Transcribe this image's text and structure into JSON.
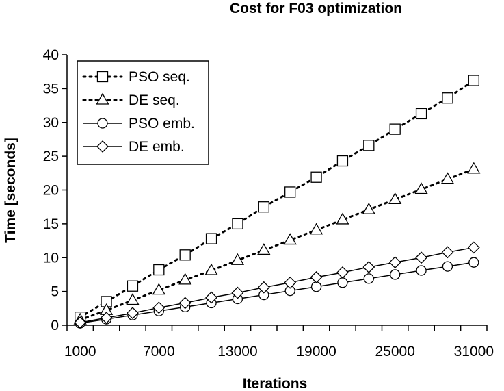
{
  "chart_data": {
    "type": "line",
    "title": "Cost for F03 optimization",
    "xlabel": "Iterations",
    "ylabel": "Time [seconds]",
    "xlim": [
      0,
      32000
    ],
    "ylim": [
      0,
      40
    ],
    "x_ticks": [
      1000,
      7000,
      13000,
      19000,
      25000,
      31000
    ],
    "x_tick_labels": [
      "1000",
      "7000",
      "13000",
      "19000",
      "25000",
      "31000"
    ],
    "y_ticks": [
      0,
      5,
      10,
      15,
      20,
      25,
      30,
      35,
      40
    ],
    "y_tick_labels": [
      "0",
      "5",
      "10",
      "15",
      "20",
      "25",
      "30",
      "35",
      "40"
    ],
    "grid": false,
    "legend_position": "top-left",
    "x": [
      1000,
      3000,
      5000,
      7000,
      9000,
      11000,
      13000,
      15000,
      17000,
      19000,
      21000,
      23000,
      25000,
      27000,
      29000,
      31000
    ],
    "series": [
      {
        "name": "PSO seq.",
        "marker": "square",
        "line_style": "dotted",
        "values": [
          1.2,
          3.5,
          5.8,
          8.2,
          10.4,
          12.8,
          15.0,
          17.5,
          19.7,
          21.9,
          24.3,
          26.6,
          29.0,
          31.3,
          33.6,
          36.2
        ]
      },
      {
        "name": "DE seq.",
        "marker": "triangle",
        "line_style": "dotted",
        "values": [
          0.8,
          2.2,
          3.7,
          5.2,
          6.7,
          8.1,
          9.6,
          11.1,
          12.6,
          14.1,
          15.6,
          17.1,
          18.6,
          20.1,
          21.6,
          23.1
        ]
      },
      {
        "name": "PSO emb.",
        "marker": "circle",
        "line_style": "solid",
        "values": [
          0.3,
          0.9,
          1.5,
          2.1,
          2.7,
          3.3,
          3.9,
          4.5,
          5.1,
          5.7,
          6.3,
          6.9,
          7.5,
          8.1,
          8.7,
          9.3
        ]
      },
      {
        "name": "DE emb.",
        "marker": "diamond",
        "line_style": "solid",
        "values": [
          0.4,
          1.1,
          1.8,
          2.6,
          3.3,
          4.1,
          4.8,
          5.6,
          6.3,
          7.1,
          7.8,
          8.6,
          9.3,
          10.0,
          10.8,
          11.5
        ]
      }
    ]
  }
}
